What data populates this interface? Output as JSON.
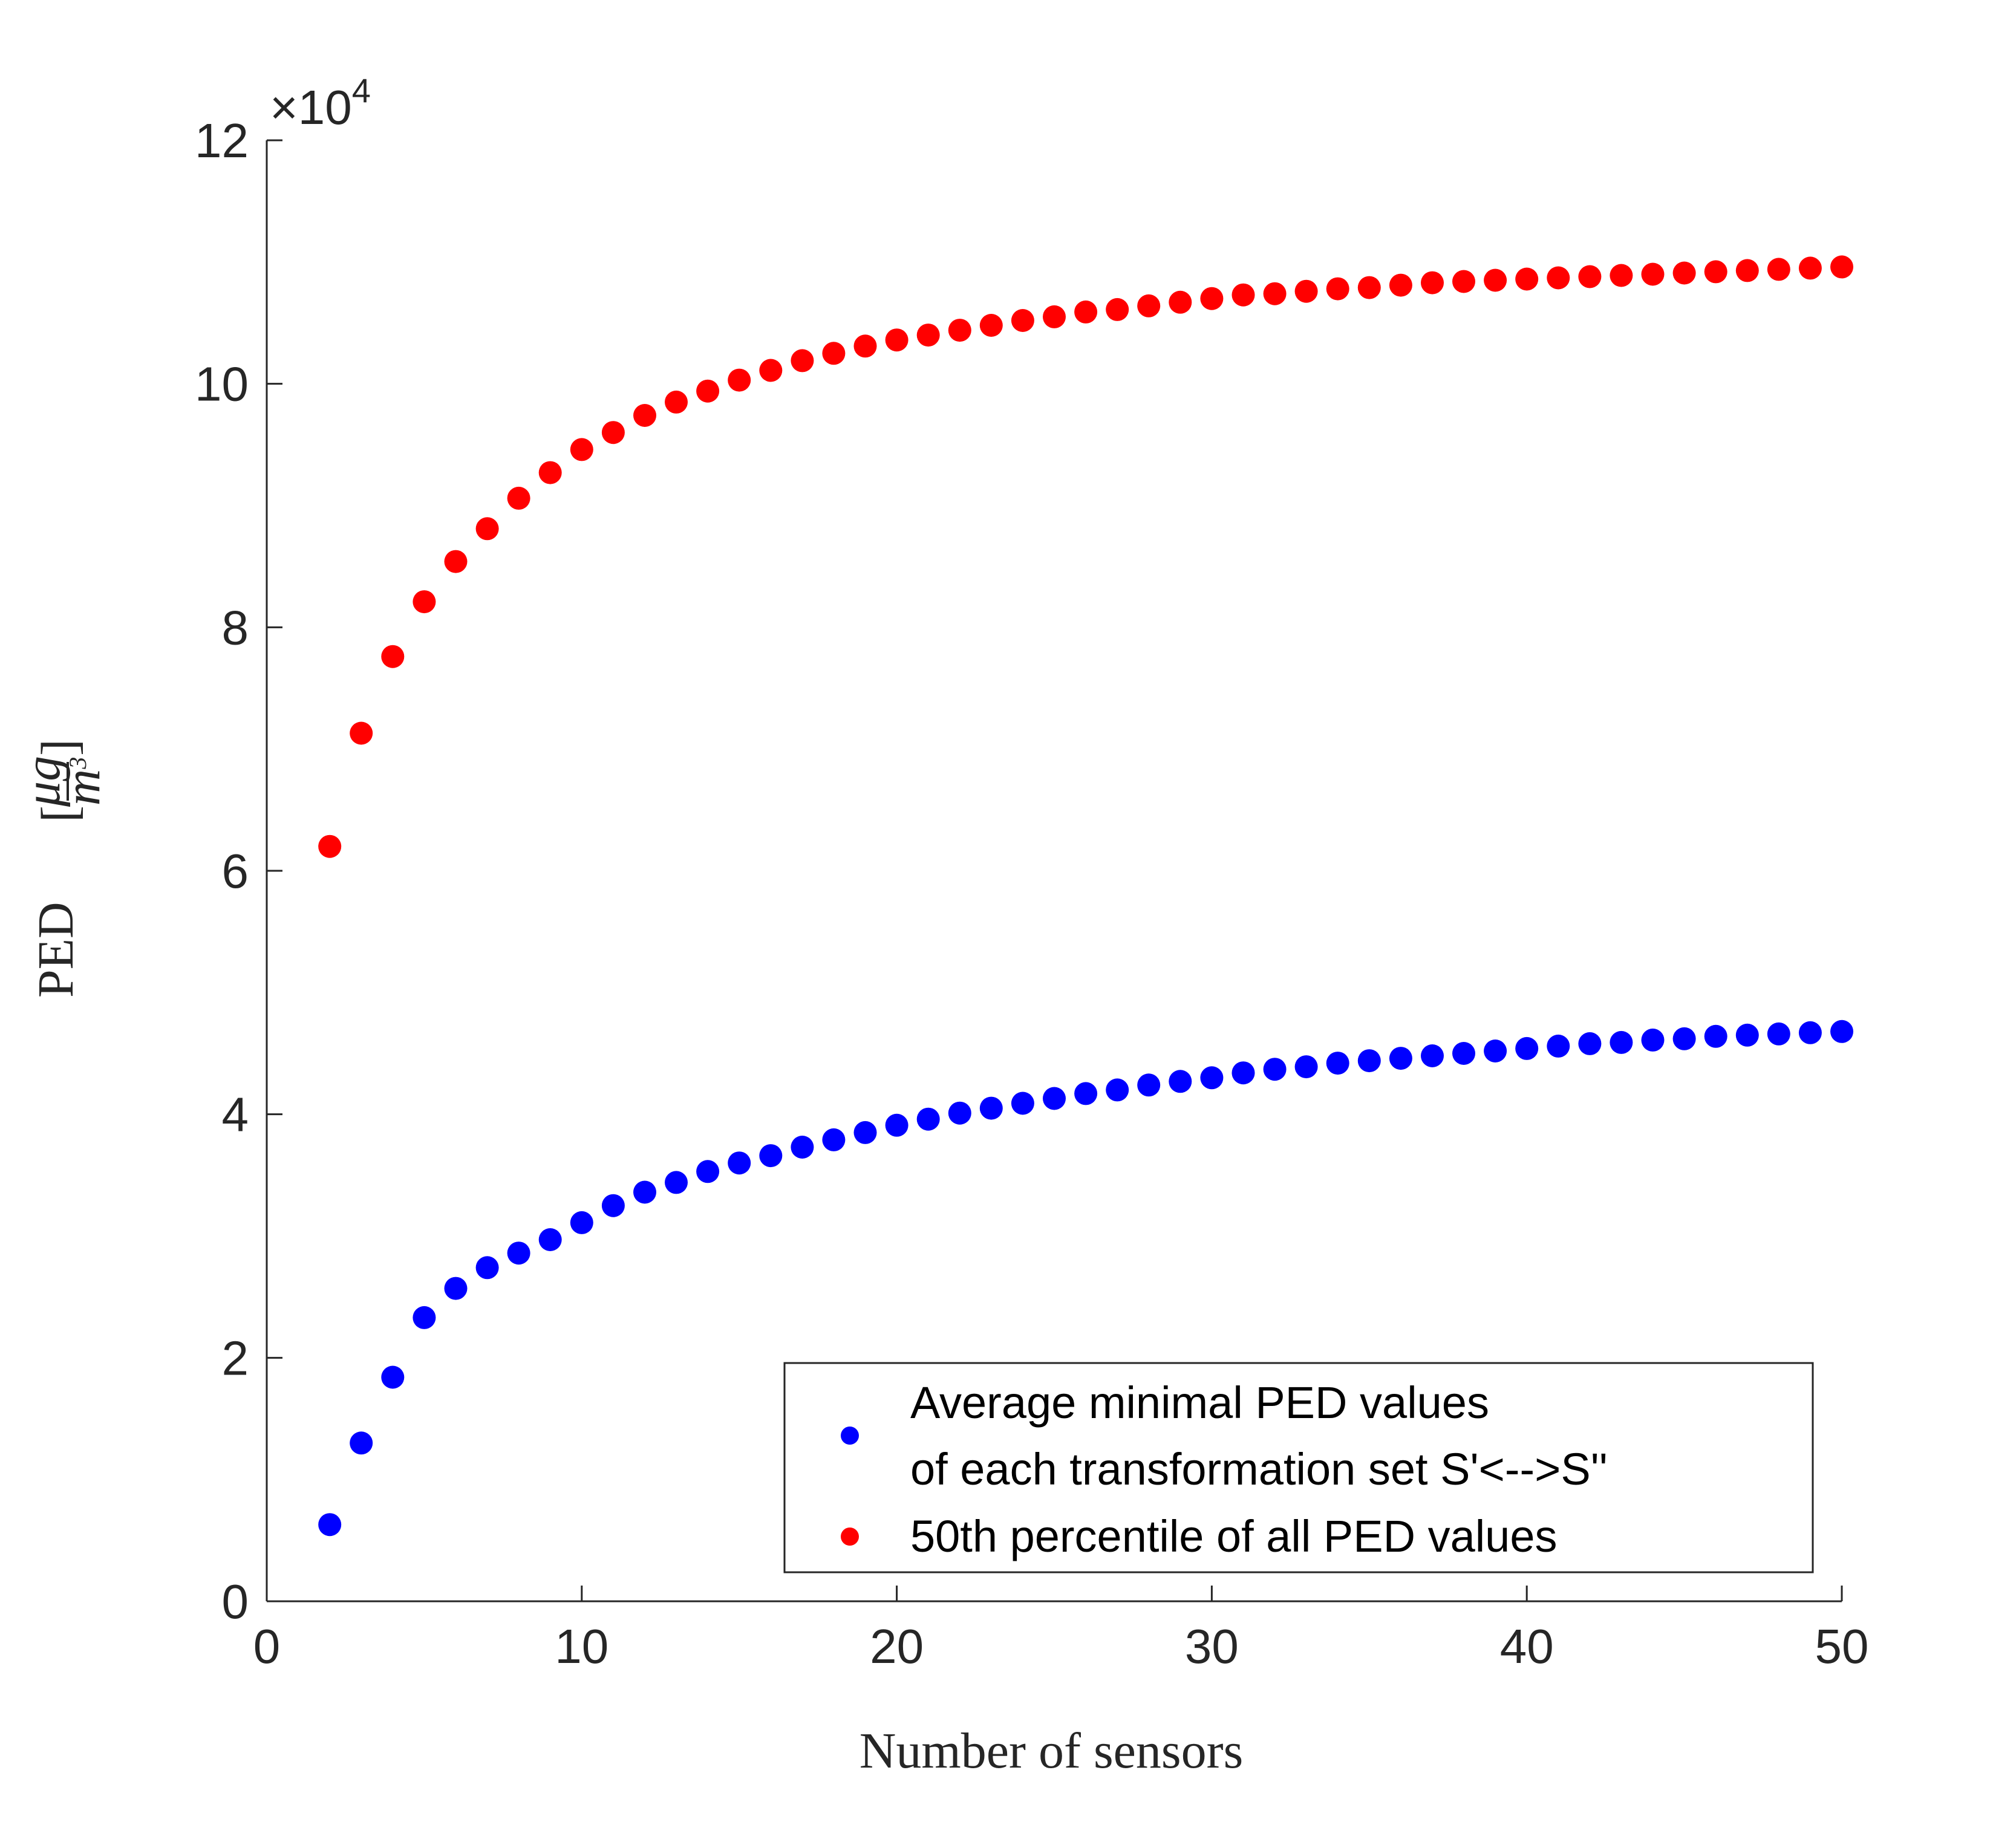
{
  "chart_data": {
    "type": "scatter",
    "xlabel": "Number of sensors",
    "ylabel": "PED",
    "ylabel_unit": {
      "numerator": "μg",
      "denominator": "m",
      "denominator_exponent": "3"
    },
    "xlim": [
      0,
      50
    ],
    "ylim": [
      0,
      120000
    ],
    "y_exponent": {
      "times": "×",
      "base": "10",
      "power": "4"
    },
    "x_ticks": [
      0,
      10,
      20,
      30,
      40,
      50
    ],
    "y_ticks": [
      0,
      20000,
      40000,
      60000,
      80000,
      100000,
      120000
    ],
    "x_tick_labels": [
      "0",
      "10",
      "20",
      "30",
      "40",
      "50"
    ],
    "y_tick_labels": [
      "0",
      "2",
      "4",
      "6",
      "8",
      "10",
      "12"
    ],
    "grid": false,
    "legend_position": "bottom-right",
    "x": [
      2,
      3,
      4,
      5,
      6,
      7,
      8,
      9,
      10,
      11,
      12,
      13,
      14,
      15,
      16,
      17,
      18,
      19,
      20,
      21,
      22,
      23,
      24,
      25,
      26,
      27,
      28,
      29,
      30,
      31,
      32,
      33,
      34,
      35,
      36,
      37,
      38,
      39,
      40,
      41,
      42,
      43,
      44,
      45,
      46,
      47,
      48,
      49,
      50
    ],
    "series": [
      {
        "name": "Average minimal PED values of each transformation set S'<-->S''",
        "legend_lines": [
          "Average minimal PED values",
          "of each transformation set S'<-->S''"
        ],
        "color": "#0000ff",
        "values": [
          6300,
          13000,
          18400,
          23300,
          25700,
          27400,
          28600,
          29700,
          31100,
          32500,
          33600,
          34400,
          35300,
          36000,
          36600,
          37300,
          37900,
          38500,
          39100,
          39600,
          40100,
          40500,
          40900,
          41300,
          41700,
          42000,
          42400,
          42700,
          43000,
          43400,
          43700,
          43900,
          44200,
          44400,
          44600,
          44800,
          45000,
          45200,
          45400,
          45600,
          45800,
          45900,
          46100,
          46200,
          46400,
          46500,
          46600,
          46700,
          46800
        ]
      },
      {
        "name": "50th percentile of all PED values",
        "legend_lines": [
          "50th percentile of all PED values"
        ],
        "color": "#ff0000",
        "values": [
          62000,
          71300,
          77600,
          82100,
          85400,
          88100,
          90600,
          92700,
          94600,
          96000,
          97400,
          98500,
          99400,
          100300,
          101100,
          101900,
          102500,
          103100,
          103600,
          104000,
          104400,
          104800,
          105200,
          105500,
          105900,
          106100,
          106400,
          106700,
          107000,
          107300,
          107400,
          107600,
          107800,
          107900,
          108100,
          108300,
          108400,
          108500,
          108600,
          108700,
          108800,
          108900,
          109000,
          109100,
          109200,
          109300,
          109400,
          109500,
          109600
        ]
      }
    ]
  }
}
